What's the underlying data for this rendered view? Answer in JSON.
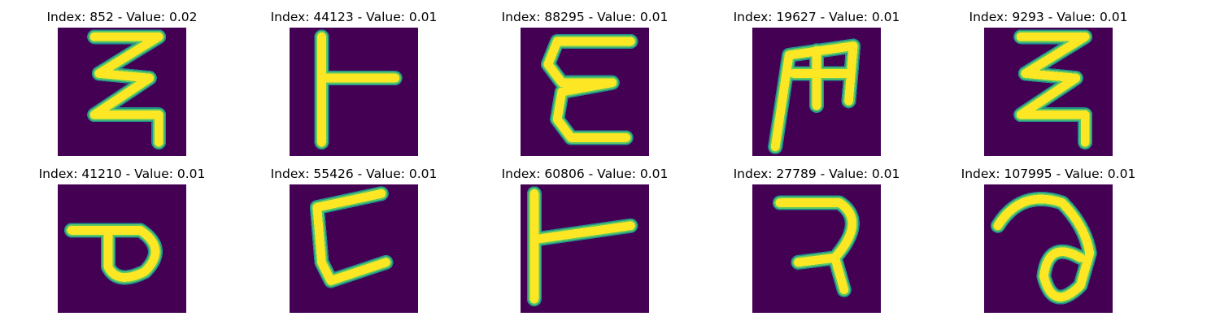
{
  "figure": {
    "background": "#440154",
    "stroke_core": "#fde725",
    "stroke_mid": "#5ec962",
    "stroke_edge": "#21918c",
    "panels": [
      {
        "title": "Index: 852 - Value: 0.02",
        "glyph": "Z"
      },
      {
        "title": "Index: 44123 - Value: 0.01",
        "glyph": "Tee"
      },
      {
        "title": "Index: 88295 - Value: 0.01",
        "glyph": "Epsilon"
      },
      {
        "title": "Index: 19627 - Value: 0.01",
        "glyph": "M"
      },
      {
        "title": "Index: 9293 - Value: 0.01",
        "glyph": "Z"
      },
      {
        "title": "Index: 41210 - Value: 0.01",
        "glyph": "loop-p"
      },
      {
        "title": "Index: 55426 - Value: 0.01",
        "glyph": "L"
      },
      {
        "title": "Index: 60806 - Value: 0.01",
        "glyph": "Tee"
      },
      {
        "title": "Index: 27789 - Value: 0.01",
        "glyph": "hook"
      },
      {
        "title": "Index: 107995 - Value: 0.01",
        "glyph": "a"
      }
    ]
  }
}
